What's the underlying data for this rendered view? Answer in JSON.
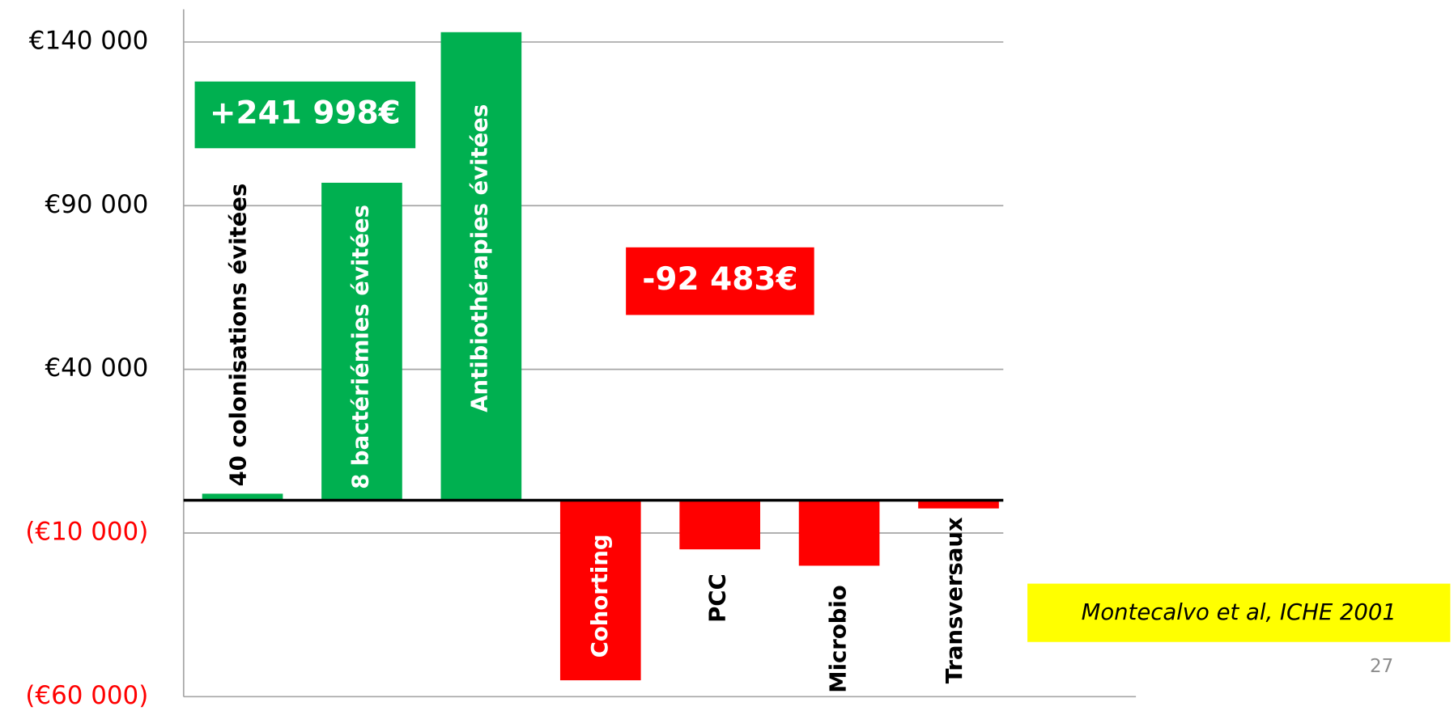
{
  "chart_data": {
    "type": "bar",
    "categories": [
      "40 colonisations évitées",
      "8 bactériémies évitées",
      "Antibiothérapies évitées",
      "Cohorting",
      "PCC",
      "Microbio",
      "Transversaux"
    ],
    "values": [
      2000,
      97000,
      143000,
      -55000,
      -15000,
      -20000,
      -2500
    ],
    "positive_color": "#00b050",
    "negative_color": "#ff0000",
    "ylim": [
      -60000,
      150000
    ],
    "yticks": [
      {
        "value": -60000,
        "label": "(€60 000)"
      },
      {
        "value": -10000,
        "label": "(€10 000)"
      },
      {
        "value": 40000,
        "label": "€40 000"
      },
      {
        "value": 90000,
        "label": "€90 000"
      },
      {
        "value": 140000,
        "label": "€140 000"
      }
    ],
    "grid": true,
    "annotations": [
      "+241 998€",
      "-92 483€"
    ],
    "source": "Montecalvo et al, ICHE 2001",
    "page_number": "27"
  }
}
